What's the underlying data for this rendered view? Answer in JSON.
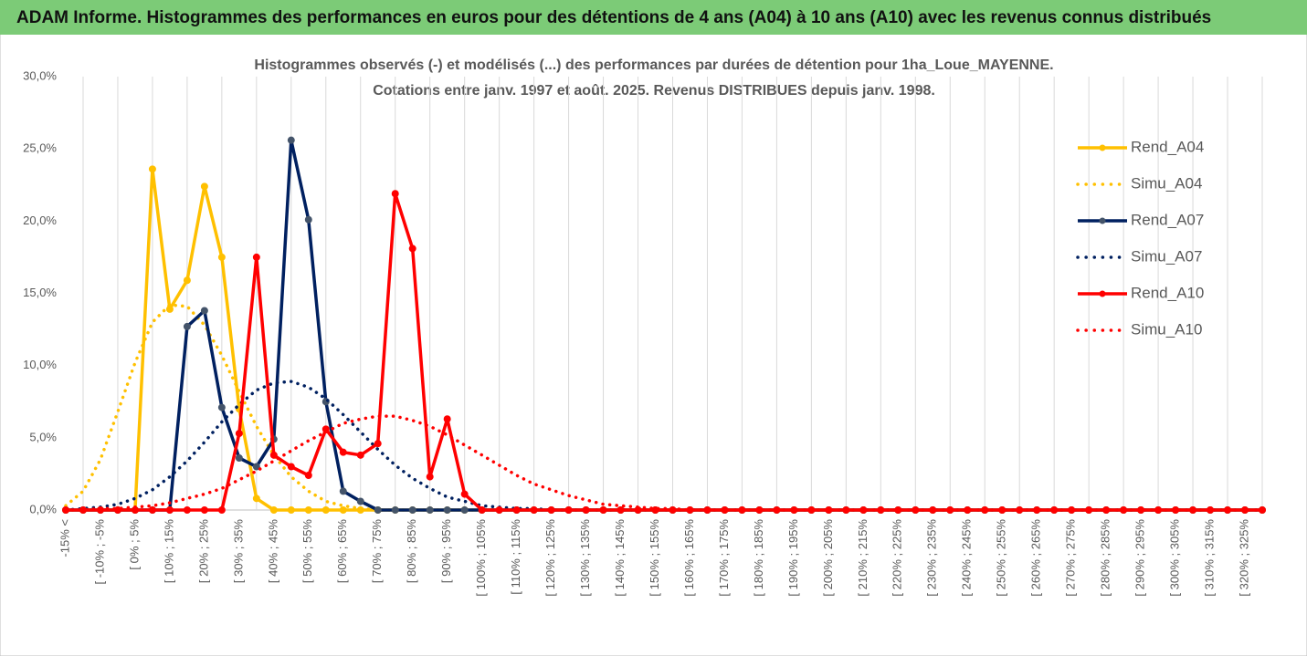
{
  "chart_data": {
    "type": "line",
    "header": "ADAM Informe. Histogrammes des performances en euros pour des détentions de 4 ans (A04) à 10 ans (A10) avec les revenus connus distribués",
    "title": [
      "Histogrammes observés (-) et modélisés (...) des performances par durées de détention pour 1ha_Loue_MAYENNE.",
      "Cotations entre janv. 1997 et août. 2025. Revenus DISTRIBUES depuis janv. 1998."
    ],
    "categories": [
      "-15% <",
      null,
      "[ -10% ; -5%",
      null,
      "[ 0% ; 5%",
      null,
      "[ 10% ; 15%",
      null,
      "[ 20% ; 25%",
      null,
      "[ 30% ; 35%",
      null,
      "[ 40% ; 45%",
      null,
      "[ 50% ; 55%",
      null,
      "[ 60% ; 65%",
      null,
      "[ 70% ; 75%",
      null,
      "[ 80% ; 85%",
      null,
      "[ 90% ; 95%",
      null,
      "[ 100% ; 105%",
      null,
      "[ 110% ; 115%",
      null,
      "[ 120% ; 125%",
      null,
      "[ 130% ; 135%",
      null,
      "[ 140% ; 145%",
      null,
      "[ 150% ; 155%",
      null,
      "[ 160% ; 165%",
      null,
      "[ 170% ; 175%",
      null,
      "[ 180% ; 185%",
      null,
      "[ 190% ; 195%",
      null,
      "[ 200% ; 205%",
      null,
      "[ 210% ; 215%",
      null,
      "[ 220% ; 225%",
      null,
      "[ 230% ; 235%",
      null,
      "[ 240% ; 245%",
      null,
      "[ 250% ; 255%",
      null,
      "[ 260% ; 265%",
      null,
      "[ 270% ; 275%",
      null,
      "[ 280% ; 285%",
      null,
      "[ 290% ; 295%",
      null,
      "[ 300% ; 305%",
      null,
      "[ 310% ; 315%",
      null,
      "[ 320% ; 325%",
      null
    ],
    "ylim": [
      0,
      30
    ],
    "yticks": [
      {
        "value": 0,
        "label": "0,0%"
      },
      {
        "value": 5,
        "label": "5,0%"
      },
      {
        "value": 10,
        "label": "10,0%"
      },
      {
        "value": 15,
        "label": "15,0%"
      },
      {
        "value": 20,
        "label": "20,0%"
      },
      {
        "value": 25,
        "label": "25,0%"
      },
      {
        "value": 30,
        "label": "30,0%"
      }
    ],
    "grid": "x",
    "legend": "right",
    "series": [
      {
        "name": "Rend_A04",
        "color": "#FFC000",
        "line_style": "solid",
        "marker": true,
        "marker_color": "#FFC000",
        "values": [
          0,
          0,
          0,
          0,
          0,
          23.6,
          13.9,
          15.9,
          22.4,
          17.5,
          7.0,
          0.8,
          0,
          0,
          0,
          0,
          0,
          0,
          0,
          0,
          0,
          0,
          0,
          0,
          0,
          0,
          0,
          0,
          0,
          0,
          0,
          0,
          0,
          0,
          0,
          0,
          0,
          0,
          0,
          0,
          0,
          0,
          0,
          0,
          0,
          0,
          0,
          0,
          0,
          0,
          0,
          0,
          0,
          0,
          0,
          0,
          0,
          0,
          0,
          0,
          0,
          0,
          0,
          0,
          0,
          0,
          0,
          0,
          0,
          0
        ]
      },
      {
        "name": "Simu_A04",
        "color": "#FFC000",
        "line_style": "dotted",
        "marker": false,
        "values": [
          0.3,
          1.3,
          3.5,
          6.8,
          10.2,
          13,
          14.2,
          14.1,
          12.8,
          10.7,
          8.2,
          5.8,
          3.8,
          2.3,
          1.3,
          0.6,
          0.3,
          0.1,
          0,
          0,
          0,
          0,
          0,
          0,
          0,
          0,
          0,
          0,
          0,
          0,
          0,
          0,
          0,
          0,
          0,
          0,
          0,
          0,
          0,
          0,
          0,
          0,
          0,
          0,
          0,
          0,
          0,
          0,
          0,
          0,
          0,
          0,
          0,
          0,
          0,
          0,
          0,
          0,
          0,
          0,
          0,
          0,
          0,
          0,
          0,
          0,
          0,
          0,
          0,
          0
        ]
      },
      {
        "name": "Rend_A07",
        "color": "#002060",
        "line_style": "solid",
        "marker": true,
        "marker_color": "#44546A",
        "values": [
          0,
          0,
          0,
          0,
          0,
          0,
          0,
          12.7,
          13.8,
          7.1,
          3.6,
          3.0,
          4.9,
          25.6,
          20.1,
          7.5,
          1.3,
          0.6,
          0,
          0,
          0,
          0,
          0,
          0,
          0,
          0,
          0,
          0,
          0,
          0,
          0,
          0,
          0,
          0,
          0,
          0,
          0,
          0,
          0,
          0,
          0,
          0,
          0,
          0,
          0,
          0,
          0,
          0,
          0,
          0,
          0,
          0,
          0,
          0,
          0,
          0,
          0,
          0,
          0,
          0,
          0,
          0,
          0,
          0,
          0,
          0,
          0,
          0,
          0,
          0
        ]
      },
      {
        "name": "Simu_A07",
        "color": "#002060",
        "line_style": "dotted",
        "marker": false,
        "values": [
          0,
          0.1,
          0.2,
          0.4,
          0.8,
          1.4,
          2.3,
          3.4,
          4.7,
          6.1,
          7.3,
          8.3,
          8.8,
          8.9,
          8.5,
          7.7,
          6.6,
          5.4,
          4.2,
          3.1,
          2.2,
          1.5,
          0.9,
          0.6,
          0.3,
          0.2,
          0.1,
          0.1,
          0,
          0,
          0,
          0,
          0,
          0,
          0,
          0,
          0,
          0,
          0,
          0,
          0,
          0,
          0,
          0,
          0,
          0,
          0,
          0,
          0,
          0,
          0,
          0,
          0,
          0,
          0,
          0,
          0,
          0,
          0,
          0,
          0,
          0,
          0,
          0,
          0,
          0,
          0,
          0,
          0,
          0
        ]
      },
      {
        "name": "Rend_A10",
        "color": "#FF0000",
        "line_style": "solid",
        "marker": true,
        "marker_color": "#FF0000",
        "values": [
          0,
          0,
          0,
          0,
          0,
          0,
          0,
          0,
          0,
          0,
          5.3,
          17.5,
          3.8,
          3.0,
          2.4,
          5.6,
          4.0,
          3.8,
          4.6,
          21.9,
          18.1,
          2.3,
          6.3,
          1.1,
          0,
          0,
          0,
          0,
          0,
          0,
          0,
          0,
          0,
          0,
          0,
          0,
          0,
          0,
          0,
          0,
          0,
          0,
          0,
          0,
          0,
          0,
          0,
          0,
          0,
          0,
          0,
          0,
          0,
          0,
          0,
          0,
          0,
          0,
          0,
          0,
          0,
          0,
          0,
          0,
          0,
          0,
          0,
          0,
          0,
          0
        ]
      },
      {
        "name": "Simu_A10",
        "color": "#FF0000",
        "line_style": "dotted",
        "marker": false,
        "values": [
          0,
          0,
          0.1,
          0.1,
          0.2,
          0.3,
          0.5,
          0.8,
          1.1,
          1.5,
          2.1,
          2.7,
          3.4,
          4.1,
          4.8,
          5.4,
          6.0,
          6.3,
          6.5,
          6.5,
          6.2,
          5.8,
          5.2,
          4.5,
          3.8,
          3.1,
          2.4,
          1.8,
          1.4,
          1.0,
          0.7,
          0.4,
          0.3,
          0.2,
          0.1,
          0.1,
          0,
          0,
          0,
          0,
          0,
          0,
          0,
          0,
          0,
          0,
          0,
          0,
          0,
          0,
          0,
          0,
          0,
          0,
          0,
          0,
          0,
          0,
          0,
          0,
          0,
          0,
          0,
          0,
          0,
          0,
          0,
          0,
          0,
          0
        ]
      }
    ]
  }
}
